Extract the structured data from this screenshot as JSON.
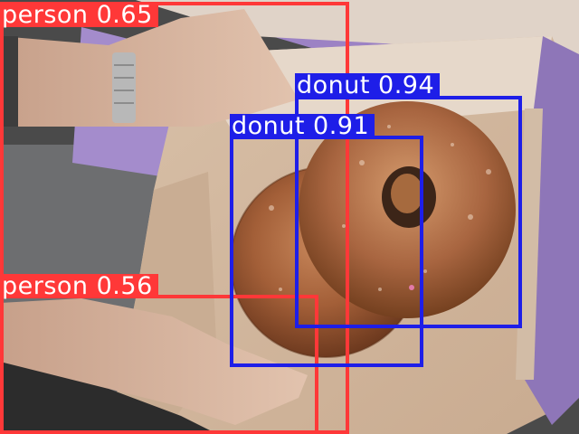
{
  "colors": {
    "person": "#ff3838",
    "donut": "#1e1ee8"
  },
  "detections": [
    {
      "label": "person 0.65",
      "class": "person",
      "score": 0.65
    },
    {
      "label": "person 0.56",
      "class": "person",
      "score": 0.56
    },
    {
      "label": "donut 0.94",
      "class": "donut",
      "score": 0.94
    },
    {
      "label": "donut 0.91",
      "class": "donut",
      "score": 0.91
    }
  ]
}
